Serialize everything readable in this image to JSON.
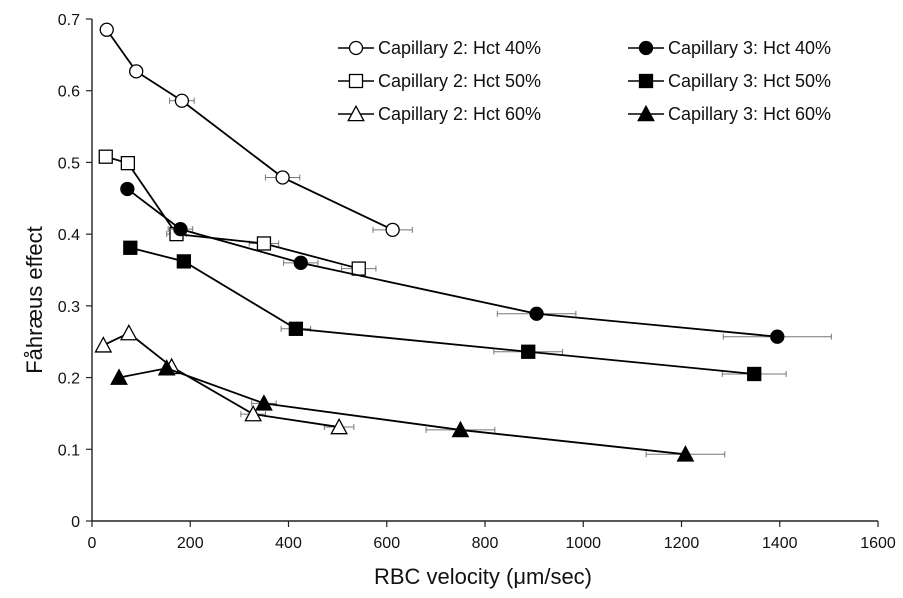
{
  "chart_data": {
    "type": "scatter",
    "xlabel": "RBC velocity (μm/sec)",
    "ylabel": "Fåhræus effect",
    "xlim": [
      0,
      1600
    ],
    "ylim": [
      0,
      0.7
    ],
    "x_ticks": [
      "0",
      "200",
      "400",
      "600",
      "800",
      "1000",
      "1200",
      "1400",
      "1600"
    ],
    "y_ticks": [
      "0",
      "0.1",
      "0.2",
      "0.3",
      "0.4",
      "0.5",
      "0.6",
      "0.7"
    ],
    "grid": false,
    "legend_position": "top-right",
    "series": [
      {
        "name": "Capillary 2: Hct 40%",
        "marker": "circle",
        "filled": false,
        "points": [
          {
            "x": 30,
            "y": 0.685,
            "xerr": 0
          },
          {
            "x": 90,
            "y": 0.627,
            "xerr": 0
          },
          {
            "x": 183,
            "y": 0.586,
            "xerr": 25
          },
          {
            "x": 388,
            "y": 0.479,
            "xerr": 35
          },
          {
            "x": 612,
            "y": 0.406,
            "xerr": 40
          }
        ]
      },
      {
        "name": "Capillary 2: Hct 50%",
        "marker": "square",
        "filled": false,
        "points": [
          {
            "x": 28,
            "y": 0.508,
            "xerr": 0
          },
          {
            "x": 73,
            "y": 0.499,
            "xerr": 0
          },
          {
            "x": 172,
            "y": 0.4,
            "xerr": 20
          },
          {
            "x": 350,
            "y": 0.387,
            "xerr": 30
          },
          {
            "x": 543,
            "y": 0.352,
            "xerr": 35
          }
        ]
      },
      {
        "name": "Capillary 2: Hct 60%",
        "marker": "triangle",
        "filled": false,
        "points": [
          {
            "x": 23,
            "y": 0.245,
            "xerr": 0
          },
          {
            "x": 75,
            "y": 0.262,
            "xerr": 0
          },
          {
            "x": 162,
            "y": 0.215,
            "xerr": 0
          },
          {
            "x": 328,
            "y": 0.149,
            "xerr": 25
          },
          {
            "x": 503,
            "y": 0.131,
            "xerr": 30
          }
        ]
      },
      {
        "name": "Capillary 3: Hct 40%",
        "marker": "circle",
        "filled": true,
        "points": [
          {
            "x": 72,
            "y": 0.463,
            "xerr": 10
          },
          {
            "x": 180,
            "y": 0.407,
            "xerr": 25
          },
          {
            "x": 425,
            "y": 0.36,
            "xerr": 35
          },
          {
            "x": 905,
            "y": 0.289,
            "xerr": 80
          },
          {
            "x": 1395,
            "y": 0.257,
            "xerr": 110
          }
        ]
      },
      {
        "name": "Capillary 3: Hct 50%",
        "marker": "square",
        "filled": true,
        "points": [
          {
            "x": 78,
            "y": 0.381,
            "xerr": 0
          },
          {
            "x": 187,
            "y": 0.362,
            "xerr": 0
          },
          {
            "x": 415,
            "y": 0.268,
            "xerr": 30
          },
          {
            "x": 888,
            "y": 0.236,
            "xerr": 70
          },
          {
            "x": 1348,
            "y": 0.205,
            "xerr": 65
          }
        ]
      },
      {
        "name": "Capillary 3: Hct 60%",
        "marker": "triangle",
        "filled": true,
        "points": [
          {
            "x": 55,
            "y": 0.2,
            "xerr": 0
          },
          {
            "x": 152,
            "y": 0.213,
            "xerr": 0
          },
          {
            "x": 350,
            "y": 0.164,
            "xerr": 25
          },
          {
            "x": 750,
            "y": 0.127,
            "xerr": 70
          },
          {
            "x": 1208,
            "y": 0.093,
            "xerr": 80
          }
        ]
      }
    ]
  }
}
